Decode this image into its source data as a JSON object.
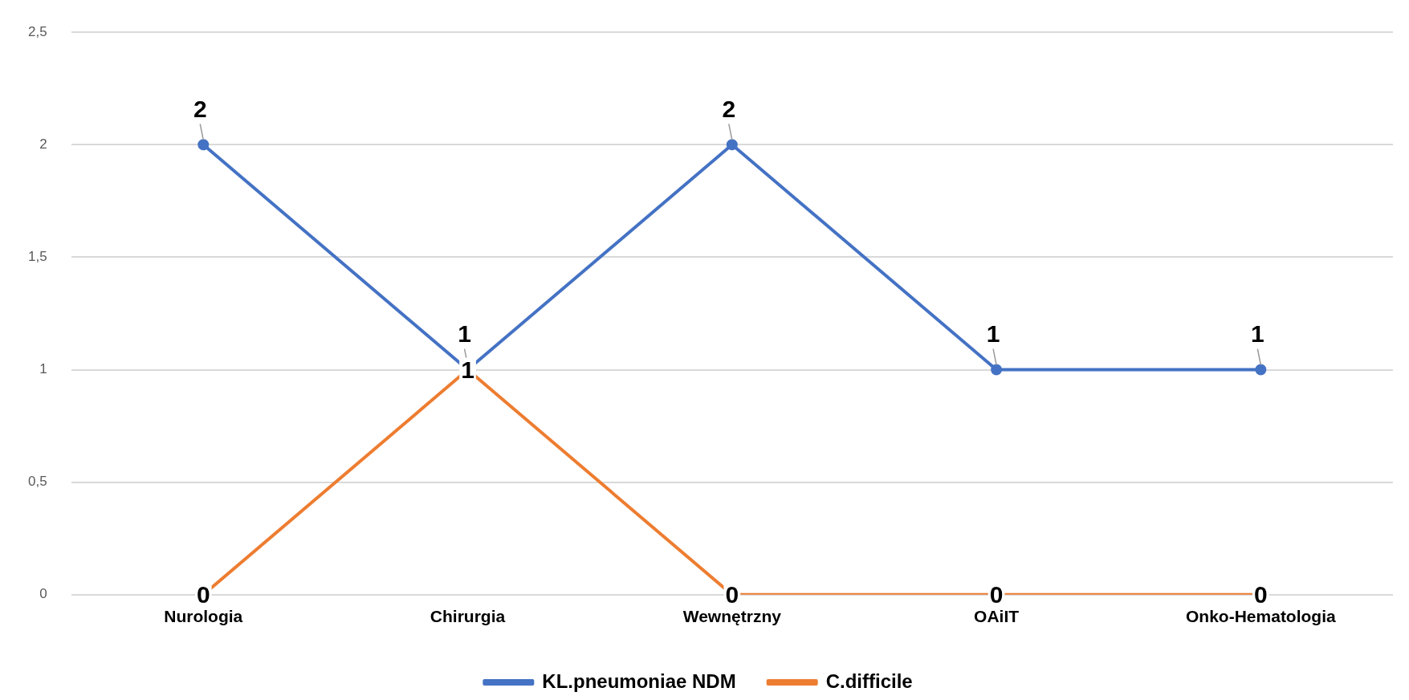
{
  "chart_data": {
    "type": "line",
    "categories": [
      "Nurologia",
      "Chirurgia",
      "Wewnętrzny",
      "OAiIT",
      "Onko-Hematologia"
    ],
    "series": [
      {
        "name": "KL.pneumoniae NDM",
        "color": "#4472c4",
        "values": [
          2,
          1,
          2,
          1,
          1
        ]
      },
      {
        "name": "C.difficile",
        "color": "#ed7d31",
        "values": [
          0,
          1,
          0,
          0,
          0
        ]
      }
    ],
    "ylim": [
      0,
      2.5
    ],
    "yticks": [
      0,
      {
        "value": 0.5,
        "label": "0,5"
      },
      1,
      {
        "value": 1.5,
        "label": "1,5"
      },
      2,
      {
        "value": 2.5,
        "label": "2,5"
      }
    ],
    "grid": "y",
    "legend": "bottom",
    "marker": "circle",
    "line_style": "solid",
    "data_labels": true
  }
}
